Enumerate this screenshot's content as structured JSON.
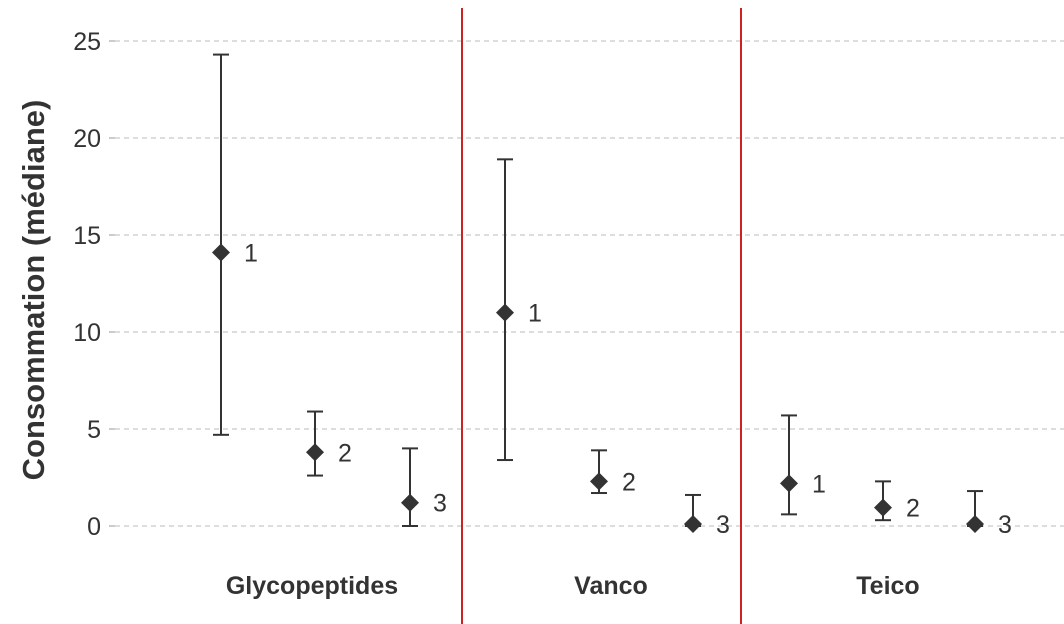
{
  "chart_data": {
    "type": "scatter",
    "ylabel": "Consommation (médiane)",
    "xlabel": "",
    "ylim": [
      0,
      25
    ],
    "yticks": [
      0,
      5,
      10,
      15,
      20,
      25
    ],
    "grid": true,
    "groups": [
      "Glycopeptides",
      "Vanco",
      "Teico"
    ],
    "points": [
      {
        "group": "Glycopeptides",
        "label": "1",
        "value": 14.1,
        "low": 4.7,
        "high": 24.3
      },
      {
        "group": "Glycopeptides",
        "label": "2",
        "value": 3.8,
        "low": 2.6,
        "high": 5.9
      },
      {
        "group": "Glycopeptides",
        "label": "3",
        "value": 1.2,
        "low": 0.0,
        "high": 4.0
      },
      {
        "group": "Vanco",
        "label": "1",
        "value": 11.0,
        "low": 3.4,
        "high": 18.9
      },
      {
        "group": "Vanco",
        "label": "2",
        "value": 2.3,
        "low": 1.7,
        "high": 3.9
      },
      {
        "group": "Vanco",
        "label": "3",
        "value": 0.1,
        "low": 0.0,
        "high": 1.6
      },
      {
        "group": "Teico",
        "label": "1",
        "value": 2.2,
        "low": 0.6,
        "high": 5.7
      },
      {
        "group": "Teico",
        "label": "2",
        "value": 0.95,
        "low": 0.3,
        "high": 2.3
      },
      {
        "group": "Teico",
        "label": "3",
        "value": 0.1,
        "low": 0.0,
        "high": 1.8
      }
    ],
    "colors": {
      "marker": "#333333",
      "errorbar": "#333333",
      "gridline": "#bbbbbb",
      "separator": "#cc2222",
      "axis": "#999999",
      "text": "#333333"
    }
  }
}
